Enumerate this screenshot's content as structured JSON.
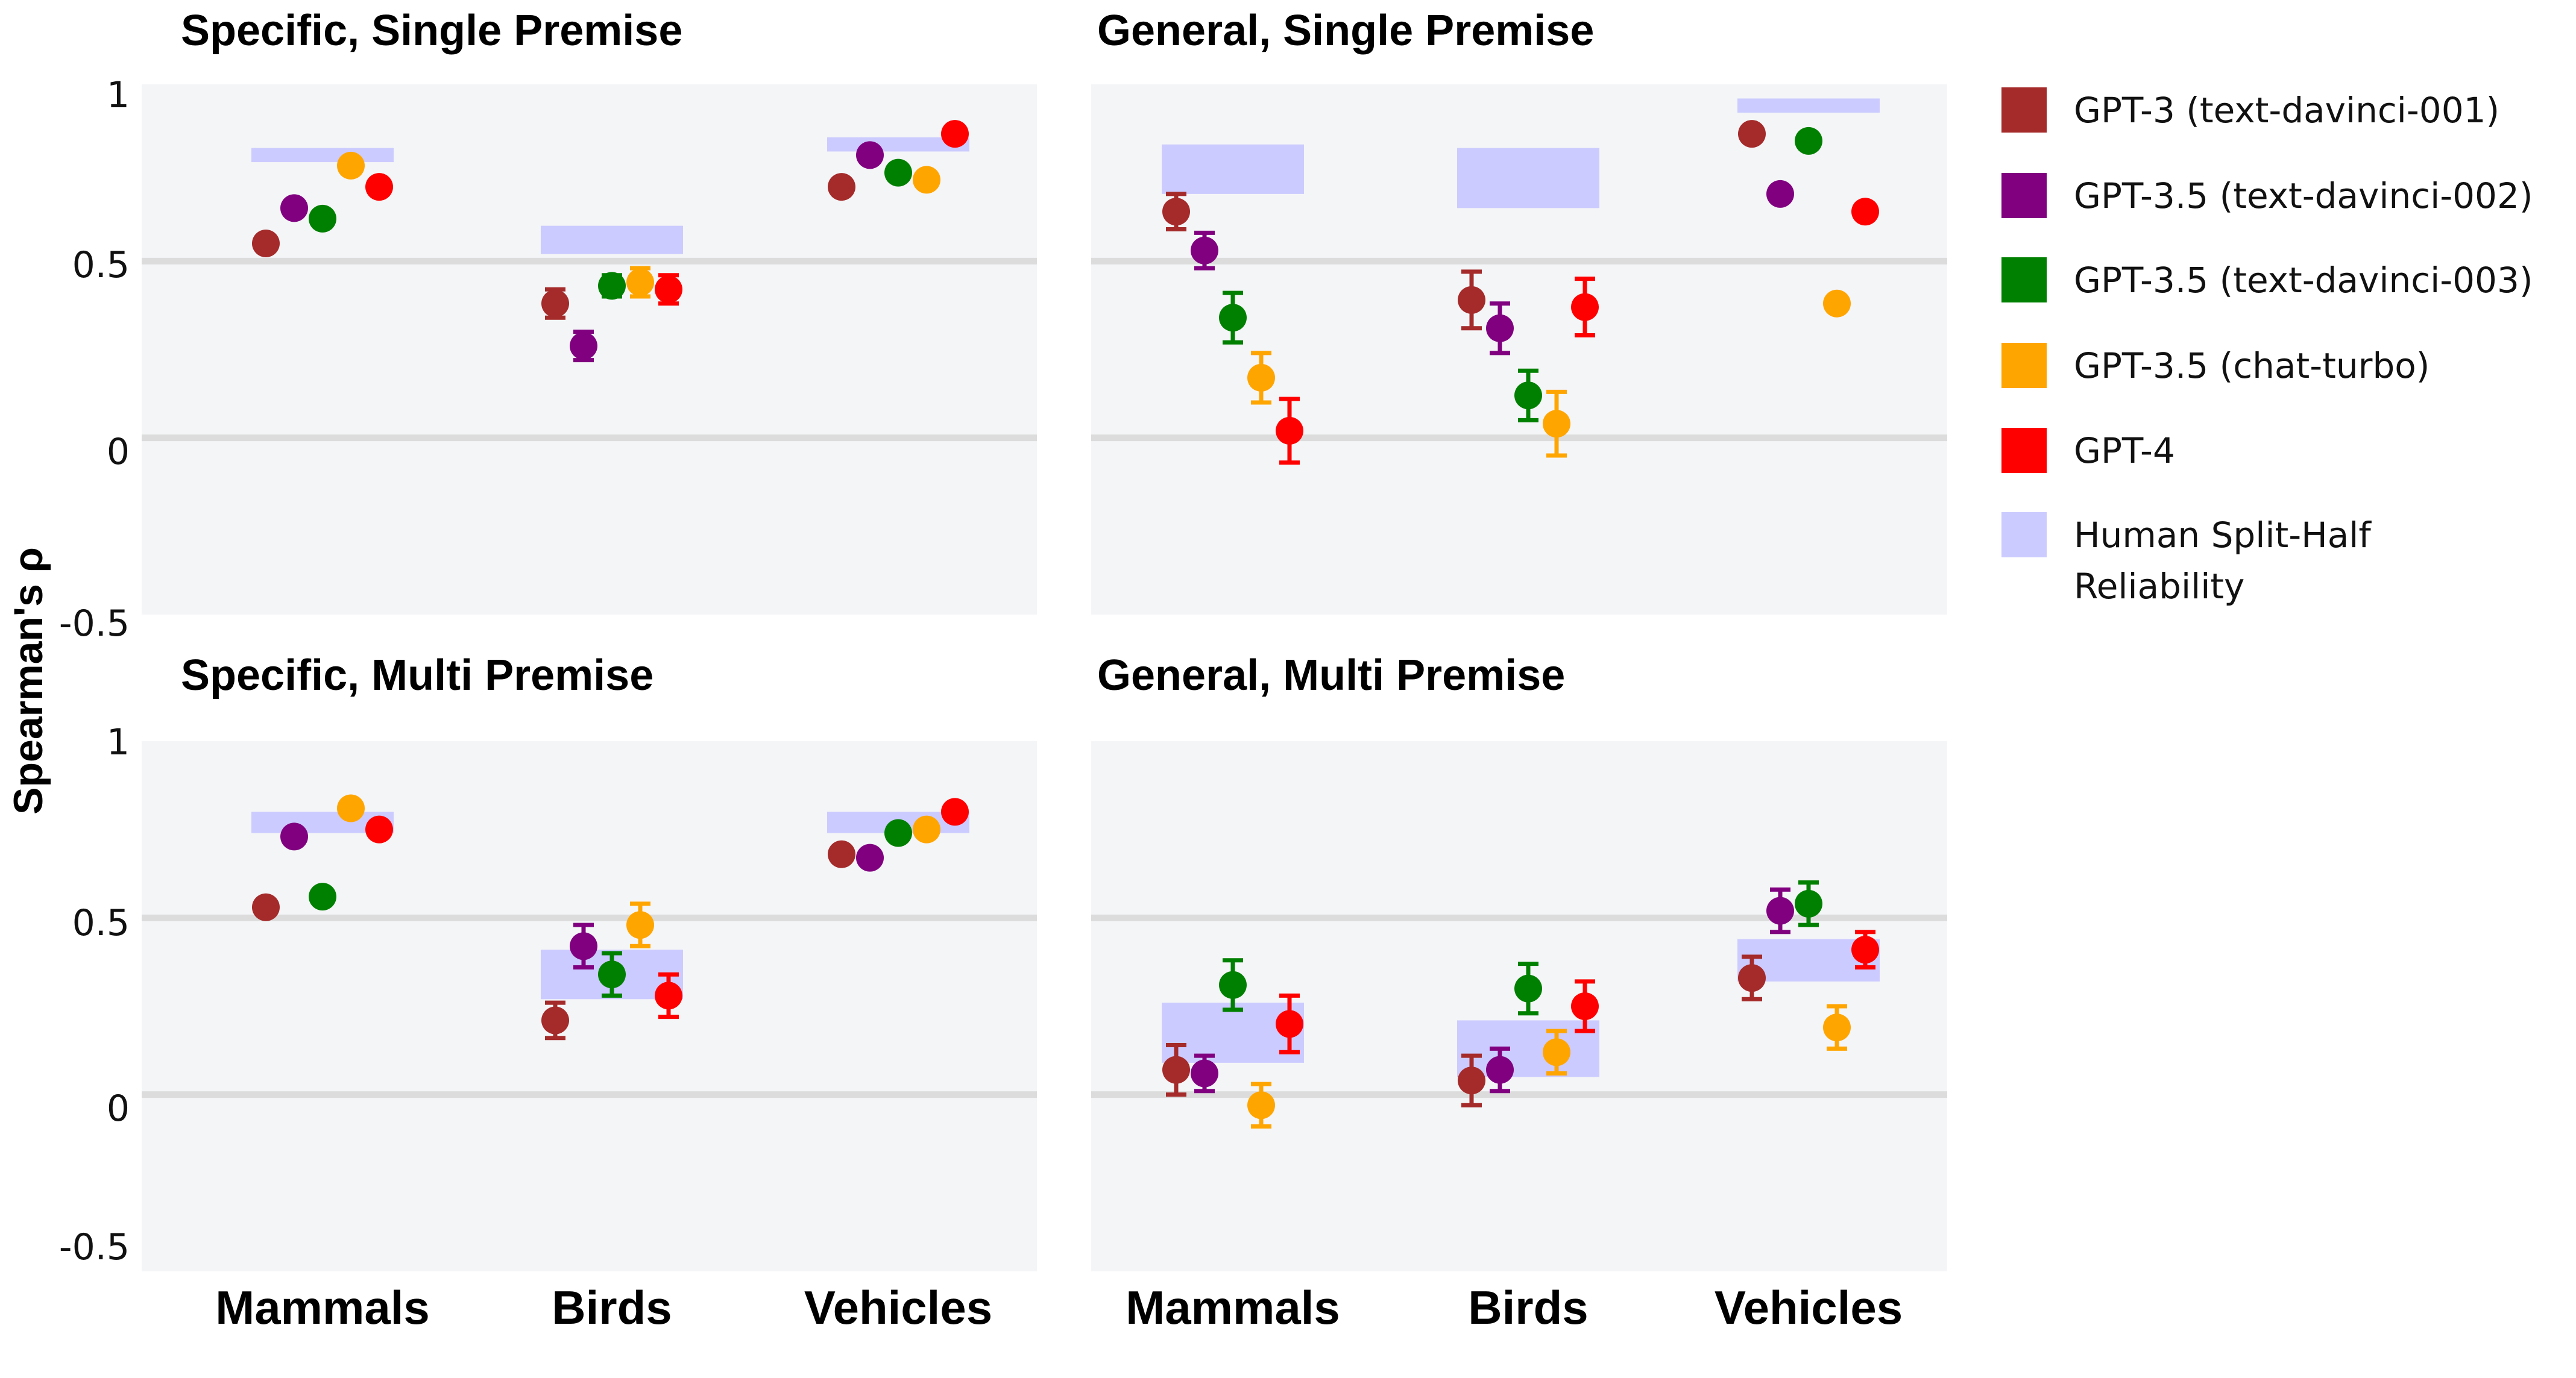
{
  "chart_data": {
    "type": "scatter",
    "ylabel": "Spearman's ρ",
    "ylim": [
      -0.5,
      1
    ],
    "yticks": [
      "1",
      "0.5",
      "0",
      "-0.5"
    ],
    "categories": [
      "Mammals",
      "Birds",
      "Vehicles"
    ],
    "grid": "horizontal lines at 0 and 0.5",
    "legend_position": "right",
    "series": [
      {
        "name": "GPT-3 (text-davinci-001)",
        "color": "#a52a2a"
      },
      {
        "name": "GPT-3.5 (text-davinci-002)",
        "color": "#800080"
      },
      {
        "name": "GPT-3.5 (text-davinci-003)",
        "color": "#008000"
      },
      {
        "name": "GPT-3.5 (chat-turbo)",
        "color": "#ffa500"
      },
      {
        "name": "GPT-4",
        "color": "#ff0000"
      }
    ],
    "human_band": {
      "name": "Human Split-Half Reliability",
      "color": "#cccbff"
    },
    "panels": [
      {
        "title": "Specific, Single Premise",
        "human_bands": [
          [
            0.78,
            0.82
          ],
          [
            0.52,
            0.6
          ],
          [
            0.81,
            0.85
          ]
        ],
        "values": {
          "GPT-3 (text-davinci-001)": [
            0.55,
            0.38,
            0.71
          ],
          "GPT-3.5 (text-davinci-002)": [
            0.65,
            0.26,
            0.8
          ],
          "GPT-3.5 (text-davinci-003)": [
            0.62,
            0.43,
            0.75
          ],
          "GPT-3.5 (chat-turbo)": [
            0.77,
            0.44,
            0.73
          ],
          "GPT-4": [
            0.71,
            0.42,
            0.86
          ]
        },
        "errors": {
          "GPT-3 (text-davinci-001)": [
            0,
            0.04,
            0
          ],
          "GPT-3.5 (text-davinci-002)": [
            0,
            0.04,
            0
          ],
          "GPT-3.5 (text-davinci-003)": [
            0,
            0.03,
            0
          ],
          "GPT-3.5 (chat-turbo)": [
            0,
            0.04,
            0
          ],
          "GPT-4": [
            0,
            0.04,
            0
          ]
        }
      },
      {
        "title": "General, Single Premise",
        "human_bands": [
          [
            0.69,
            0.83
          ],
          [
            0.65,
            0.82
          ],
          [
            0.92,
            0.96
          ]
        ],
        "values": {
          "GPT-3 (text-davinci-001)": [
            0.64,
            0.39,
            0.86
          ],
          "GPT-3.5 (text-davinci-002)": [
            0.53,
            0.31,
            0.69
          ],
          "GPT-3.5 (text-davinci-003)": [
            0.34,
            0.12,
            0.84
          ],
          "GPT-3.5 (chat-turbo)": [
            0.17,
            0.04,
            0.38
          ],
          "GPT-4": [
            0.02,
            0.37,
            0.64
          ]
        },
        "errors": {
          "GPT-3 (text-davinci-001)": [
            0.05,
            0.08,
            0
          ],
          "GPT-3.5 (text-davinci-002)": [
            0.05,
            0.07,
            0.02
          ],
          "GPT-3.5 (text-davinci-003)": [
            0.07,
            0.07,
            0
          ],
          "GPT-3.5 (chat-turbo)": [
            0.07,
            0.09,
            0
          ],
          "GPT-4": [
            0.09,
            0.08,
            0
          ]
        }
      },
      {
        "title": "Specific, Multi Premise",
        "human_bands": [
          [
            0.74,
            0.8
          ],
          [
            0.27,
            0.41
          ],
          [
            0.74,
            0.8
          ]
        ],
        "values": {
          "GPT-3 (text-davinci-001)": [
            0.53,
            0.21,
            0.68
          ],
          "GPT-3.5 (text-davinci-002)": [
            0.73,
            0.42,
            0.67
          ],
          "GPT-3.5 (text-davinci-003)": [
            0.56,
            0.34,
            0.74
          ],
          "GPT-3.5 (chat-turbo)": [
            0.81,
            0.48,
            0.75
          ],
          "GPT-4": [
            0.75,
            0.28,
            0.8
          ]
        },
        "errors": {
          "GPT-3 (text-davinci-001)": [
            0.02,
            0.05,
            0.02
          ],
          "GPT-3.5 (text-davinci-002)": [
            0.02,
            0.06,
            0.02
          ],
          "GPT-3.5 (text-davinci-003)": [
            0.02,
            0.06,
            0.02
          ],
          "GPT-3.5 (chat-turbo)": [
            0.02,
            0.06,
            0.02
          ],
          "GPT-4": [
            0.02,
            0.06,
            0.02
          ]
        }
      },
      {
        "title": "General, Multi Premise",
        "human_bands": [
          [
            0.09,
            0.26
          ],
          [
            0.05,
            0.21
          ],
          [
            0.32,
            0.44
          ]
        ],
        "values": {
          "GPT-3 (text-davinci-001)": [
            0.07,
            0.04,
            0.33
          ],
          "GPT-3.5 (text-davinci-002)": [
            0.06,
            0.07,
            0.52
          ],
          "GPT-3.5 (text-davinci-003)": [
            0.31,
            0.3,
            0.54
          ],
          "GPT-3.5 (chat-turbo)": [
            -0.03,
            0.12,
            0.19
          ],
          "GPT-4": [
            0.2,
            0.25,
            0.41
          ]
        },
        "errors": {
          "GPT-3 (text-davinci-001)": [
            0.07,
            0.07,
            0.06
          ],
          "GPT-3.5 (text-davinci-002)": [
            0.05,
            0.06,
            0.06
          ],
          "GPT-3.5 (text-davinci-003)": [
            0.07,
            0.07,
            0.06
          ],
          "GPT-3.5 (chat-turbo)": [
            0.06,
            0.06,
            0.06
          ],
          "GPT-4": [
            0.08,
            0.07,
            0.05
          ]
        }
      }
    ]
  }
}
